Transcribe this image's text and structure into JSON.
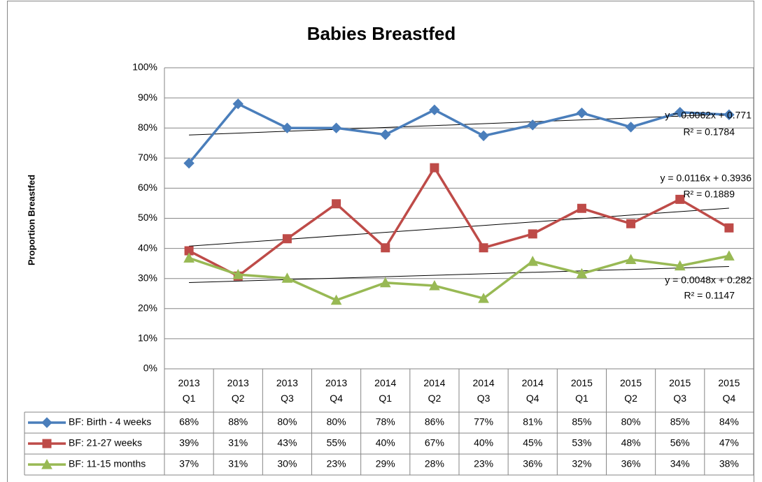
{
  "chart_data": {
    "type": "line",
    "title": "Babies Breastfed",
    "y_label": "Proportion Breastfed",
    "categories": [
      "2013 Q1",
      "2013 Q2",
      "2013 Q3",
      "2013 Q4",
      "2014 Q1",
      "2014 Q2",
      "2014 Q3",
      "2014 Q4",
      "2015 Q1",
      "2015 Q2",
      "2015 Q3",
      "2015 Q4"
    ],
    "series": [
      {
        "name": "BF: Birth - 4 weeks",
        "color": "#4a7ebb",
        "marker": "diamond",
        "values": [
          68.3,
          88,
          80,
          80,
          77.8,
          86,
          77.4,
          81,
          85,
          80.3,
          85.2,
          84.4
        ],
        "value_labels": [
          "68%",
          "88%",
          "80%",
          "80%",
          "78%",
          "86%",
          "77%",
          "81%",
          "85%",
          "80%",
          "85%",
          "84%"
        ]
      },
      {
        "name": "BF: 21-27 weeks",
        "color": "#be4b48",
        "marker": "square",
        "values": [
          39.2,
          30.8,
          43.2,
          54.8,
          40.2,
          66.8,
          40.2,
          44.8,
          53.3,
          48.2,
          56.3,
          46.8
        ],
        "value_labels": [
          "39%",
          "31%",
          "43%",
          "55%",
          "40%",
          "67%",
          "40%",
          "45%",
          "53%",
          "48%",
          "56%",
          "47%"
        ]
      },
      {
        "name": "BF: 11-15 months",
        "color": "#98b954",
        "marker": "triangle",
        "values": [
          36.8,
          31.3,
          30.1,
          22.8,
          28.6,
          27.6,
          23.4,
          35.7,
          31.6,
          36.3,
          34.2,
          37.5
        ],
        "value_labels": [
          "37%",
          "31%",
          "30%",
          "23%",
          "29%",
          "28%",
          "23%",
          "36%",
          "32%",
          "36%",
          "34%",
          "38%"
        ]
      }
    ],
    "trendlines": [
      {
        "equation": "y = 0.0062x + 0.771",
        "r_squared": "R² = 0.1784"
      },
      {
        "equation": "y = 0.0116x + 0.3936",
        "r_squared": "R² = 0.1889"
      },
      {
        "equation": "y = 0.0048x + 0.282",
        "r_squared": "R² = 0.1147"
      }
    ],
    "ylim": [
      0,
      100
    ],
    "yticks": [
      {
        "value": 0,
        "label": "0%"
      },
      {
        "value": 10,
        "label": "10%"
      },
      {
        "value": 20,
        "label": "20%"
      },
      {
        "value": 30,
        "label": "30%"
      },
      {
        "value": 40,
        "label": "40%"
      },
      {
        "value": 50,
        "label": "50%"
      },
      {
        "value": 60,
        "label": "60%"
      },
      {
        "value": 70,
        "label": "70%"
      },
      {
        "value": 80,
        "label": "80%"
      },
      {
        "value": 90,
        "label": "90%"
      },
      {
        "value": 100,
        "label": "100%"
      }
    ],
    "grid": true,
    "data_table": true
  }
}
